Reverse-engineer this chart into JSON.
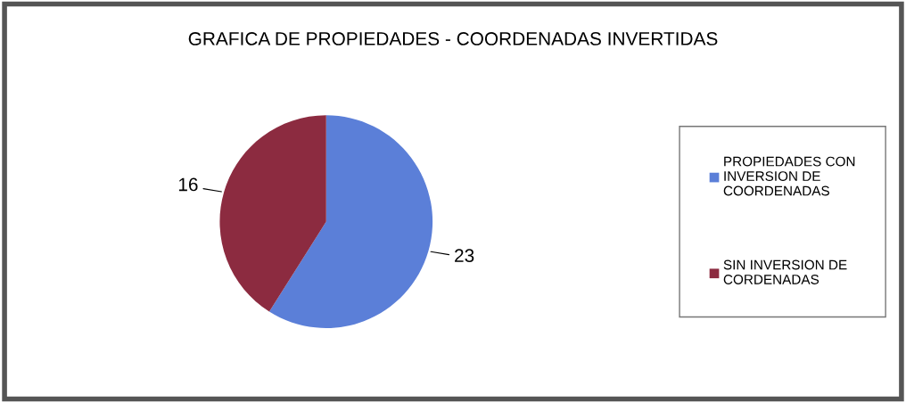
{
  "chart_data": {
    "type": "pie",
    "title": "GRAFICA DE PROPIEDADES - COORDENADAS INVERTIDAS",
    "categories": [
      "PROPIEDADES CON INVERSION DE COORDENADAS",
      "SIN INVERSION DE CORDENADAS"
    ],
    "values": [
      23,
      16
    ],
    "colors": [
      "#5b7fd8",
      "#8c2b40"
    ],
    "data_labels": true,
    "legend": "right"
  }
}
